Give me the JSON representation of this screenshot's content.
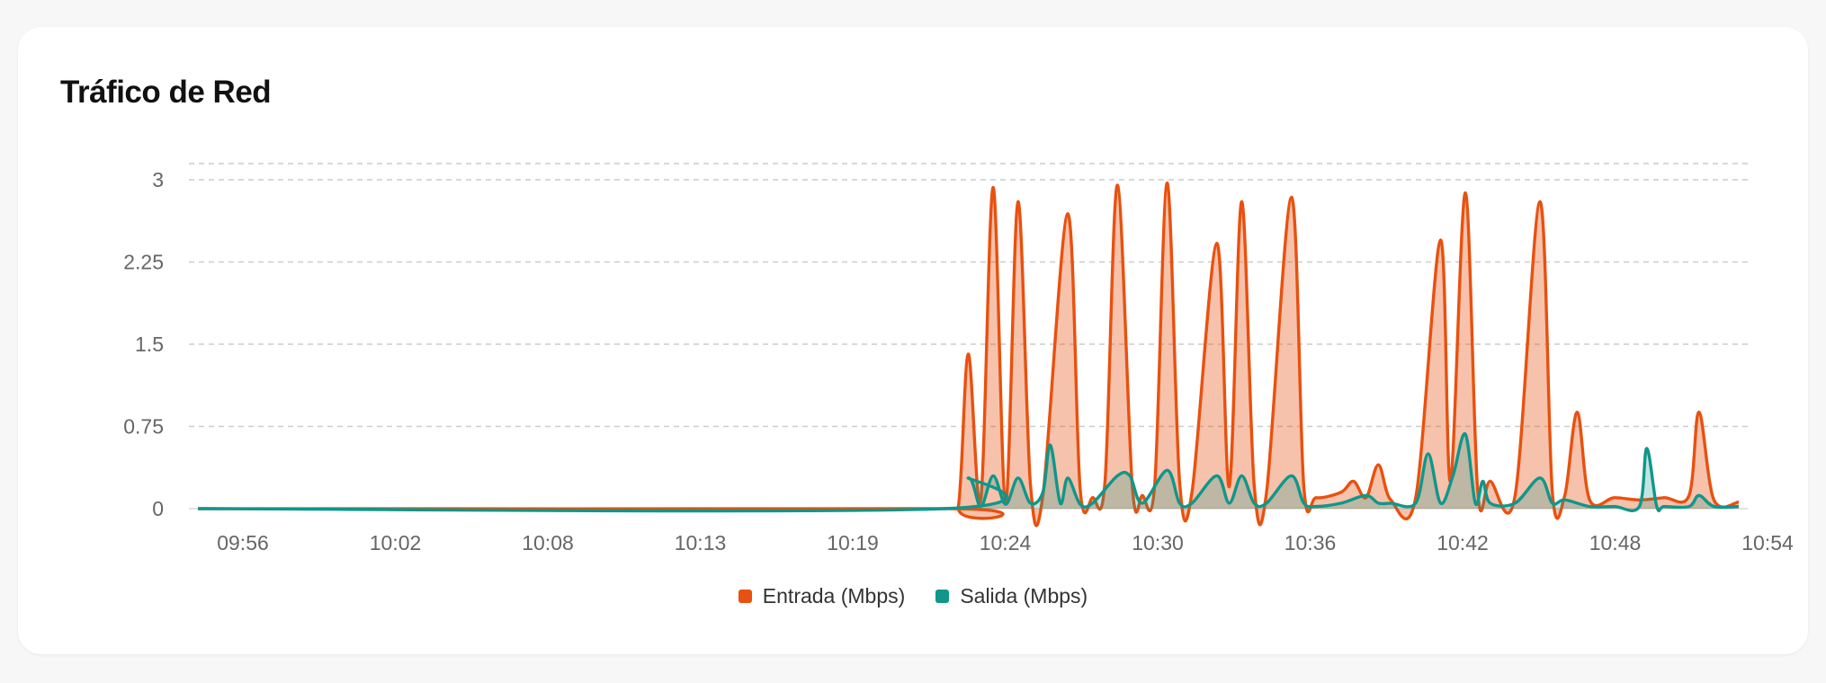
{
  "card": {
    "title": "Tráfico de Red"
  },
  "chart_data": {
    "type": "area",
    "title": "Tráfico de Red",
    "xlabel": "",
    "ylabel": "",
    "x_ticks": [
      "09:56",
      "10:02",
      "10:08",
      "10:13",
      "10:19",
      "10:24",
      "10:30",
      "10:36",
      "10:42",
      "10:48",
      "10:54"
    ],
    "x_range": [
      "09:53",
      "10:55"
    ],
    "y_ticks": [
      0,
      0.75,
      1.5,
      2.25,
      3
    ],
    "ylim": [
      0,
      3
    ],
    "grid": true,
    "legend_position": "bottom-center",
    "series": [
      {
        "name": "Entrada (Mbps)",
        "color": "#e8510f",
        "points": [
          [
            "09:53",
            0
          ],
          [
            "10:23",
            0
          ],
          [
            "10:23.6",
            0.02
          ],
          [
            "10:24",
            1.41
          ],
          [
            "10:24.5",
            0.08
          ],
          [
            "10:25",
            2.93
          ],
          [
            "10:25.5",
            0.05
          ],
          [
            "10:26",
            2.8
          ],
          [
            "10:26.5",
            0.22
          ],
          [
            "10:27",
            0.12
          ],
          [
            "10:28",
            2.69
          ],
          [
            "10:28.5",
            0.18
          ],
          [
            "10:29",
            0.1
          ],
          [
            "10:29.5",
            0.25
          ],
          [
            "10:30",
            2.95
          ],
          [
            "10:30.6",
            0.2
          ],
          [
            "10:31",
            0.12
          ],
          [
            "10:31.5",
            0.22
          ],
          [
            "10:32",
            2.97
          ],
          [
            "10:32.5",
            0.25
          ],
          [
            "10:33",
            0.15
          ],
          [
            "10:34",
            2.42
          ],
          [
            "10:34.5",
            0.2
          ],
          [
            "10:35",
            2.8
          ],
          [
            "10:35.5",
            0.22
          ],
          [
            "10:36",
            0.15
          ],
          [
            "10:37",
            2.84
          ],
          [
            "10:37.5",
            0.2
          ],
          [
            "10:38",
            0.1
          ],
          [
            "10:39",
            0.15
          ],
          [
            "10:39.5",
            0.25
          ],
          [
            "10:40",
            0.1
          ],
          [
            "10:40.5",
            0.4
          ],
          [
            "10:41",
            0.08
          ],
          [
            "10:42",
            0.1
          ],
          [
            "10:43",
            2.45
          ],
          [
            "10:43.4",
            0.25
          ],
          [
            "10:44",
            2.88
          ],
          [
            "10:44.5",
            0.15
          ],
          [
            "10:45",
            0.25
          ],
          [
            "10:46",
            0.12
          ],
          [
            "10:47",
            2.8
          ],
          [
            "10:47.5",
            0.15
          ],
          [
            "10:48",
            0.12
          ],
          [
            "10:48.5",
            0.88
          ],
          [
            "10:49",
            0.08
          ],
          [
            "10:50",
            0.1
          ],
          [
            "10:51",
            0.08
          ],
          [
            "10:52",
            0.1
          ],
          [
            "10:53",
            0.12
          ],
          [
            "10:53.4",
            0.88
          ],
          [
            "10:54",
            0.08
          ],
          [
            "10:55",
            0.06
          ]
        ]
      },
      {
        "name": "Salida (Mbps)",
        "color": "#10968a",
        "points": [
          [
            "09:53",
            0
          ],
          [
            "10:23",
            0
          ],
          [
            "10:24",
            0.28
          ],
          [
            "10:24.5",
            0.02
          ],
          [
            "10:25",
            0.3
          ],
          [
            "10:25.5",
            0.04
          ],
          [
            "10:26",
            0.28
          ],
          [
            "10:26.5",
            0.05
          ],
          [
            "10:27",
            0.15
          ],
          [
            "10:27.3",
            0.58
          ],
          [
            "10:27.7",
            0.05
          ],
          [
            "10:28",
            0.28
          ],
          [
            "10:28.5",
            0.04
          ],
          [
            "10:29",
            0.05
          ],
          [
            "10:30",
            0.3
          ],
          [
            "10:30.5",
            0.3
          ],
          [
            "10:31",
            0.05
          ],
          [
            "10:32",
            0.35
          ],
          [
            "10:32.5",
            0.05
          ],
          [
            "10:33",
            0.05
          ],
          [
            "10:34",
            0.3
          ],
          [
            "10:34.5",
            0.05
          ],
          [
            "10:35",
            0.3
          ],
          [
            "10:35.5",
            0.05
          ],
          [
            "10:36",
            0.05
          ],
          [
            "10:37",
            0.3
          ],
          [
            "10:37.5",
            0.05
          ],
          [
            "10:38",
            0.02
          ],
          [
            "10:39",
            0.05
          ],
          [
            "10:40",
            0.12
          ],
          [
            "10:40.5",
            0.05
          ],
          [
            "10:41",
            0.05
          ],
          [
            "10:42",
            0.05
          ],
          [
            "10:42.5",
            0.5
          ],
          [
            "10:43",
            0.05
          ],
          [
            "10:43.5",
            0.3
          ],
          [
            "10:44",
            0.68
          ],
          [
            "10:44.4",
            0.05
          ],
          [
            "10:44.7",
            0.25
          ],
          [
            "10:45",
            0.05
          ],
          [
            "10:46",
            0.05
          ],
          [
            "10:47",
            0.28
          ],
          [
            "10:47.5",
            0.05
          ],
          [
            "10:48",
            0.08
          ],
          [
            "10:49",
            0.02
          ],
          [
            "10:50",
            0.02
          ],
          [
            "10:51",
            0.02
          ],
          [
            "10:51.3",
            0.55
          ],
          [
            "10:51.7",
            0.02
          ],
          [
            "10:52",
            0.02
          ],
          [
            "10:53",
            0.02
          ],
          [
            "10:53.4",
            0.12
          ],
          [
            "10:54",
            0.02
          ],
          [
            "10:55",
            0.02
          ]
        ]
      }
    ]
  }
}
